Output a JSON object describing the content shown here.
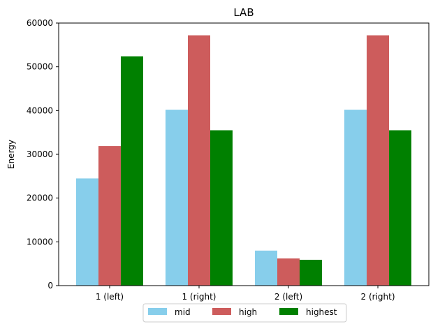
{
  "chart_data": {
    "type": "bar",
    "title": "LAB",
    "xlabel": "",
    "ylabel": "Energy",
    "categories": [
      "1 (left)",
      "1 (right)",
      "2 (left)",
      "2 (right)"
    ],
    "series": [
      {
        "name": "mid",
        "color": "#87CEEB",
        "values": [
          24500,
          40200,
          8000,
          40200
        ]
      },
      {
        "name": "high",
        "color": "#CD5C5C",
        "values": [
          31900,
          57200,
          6200,
          57200
        ]
      },
      {
        "name": "highest",
        "color": "#008000",
        "values": [
          52400,
          35500,
          5900,
          35500
        ]
      }
    ],
    "ylim": [
      0,
      60000
    ],
    "yticks": [
      0,
      10000,
      20000,
      30000,
      40000,
      50000,
      60000
    ],
    "grid": false,
    "legend_position": "bottom-center"
  }
}
